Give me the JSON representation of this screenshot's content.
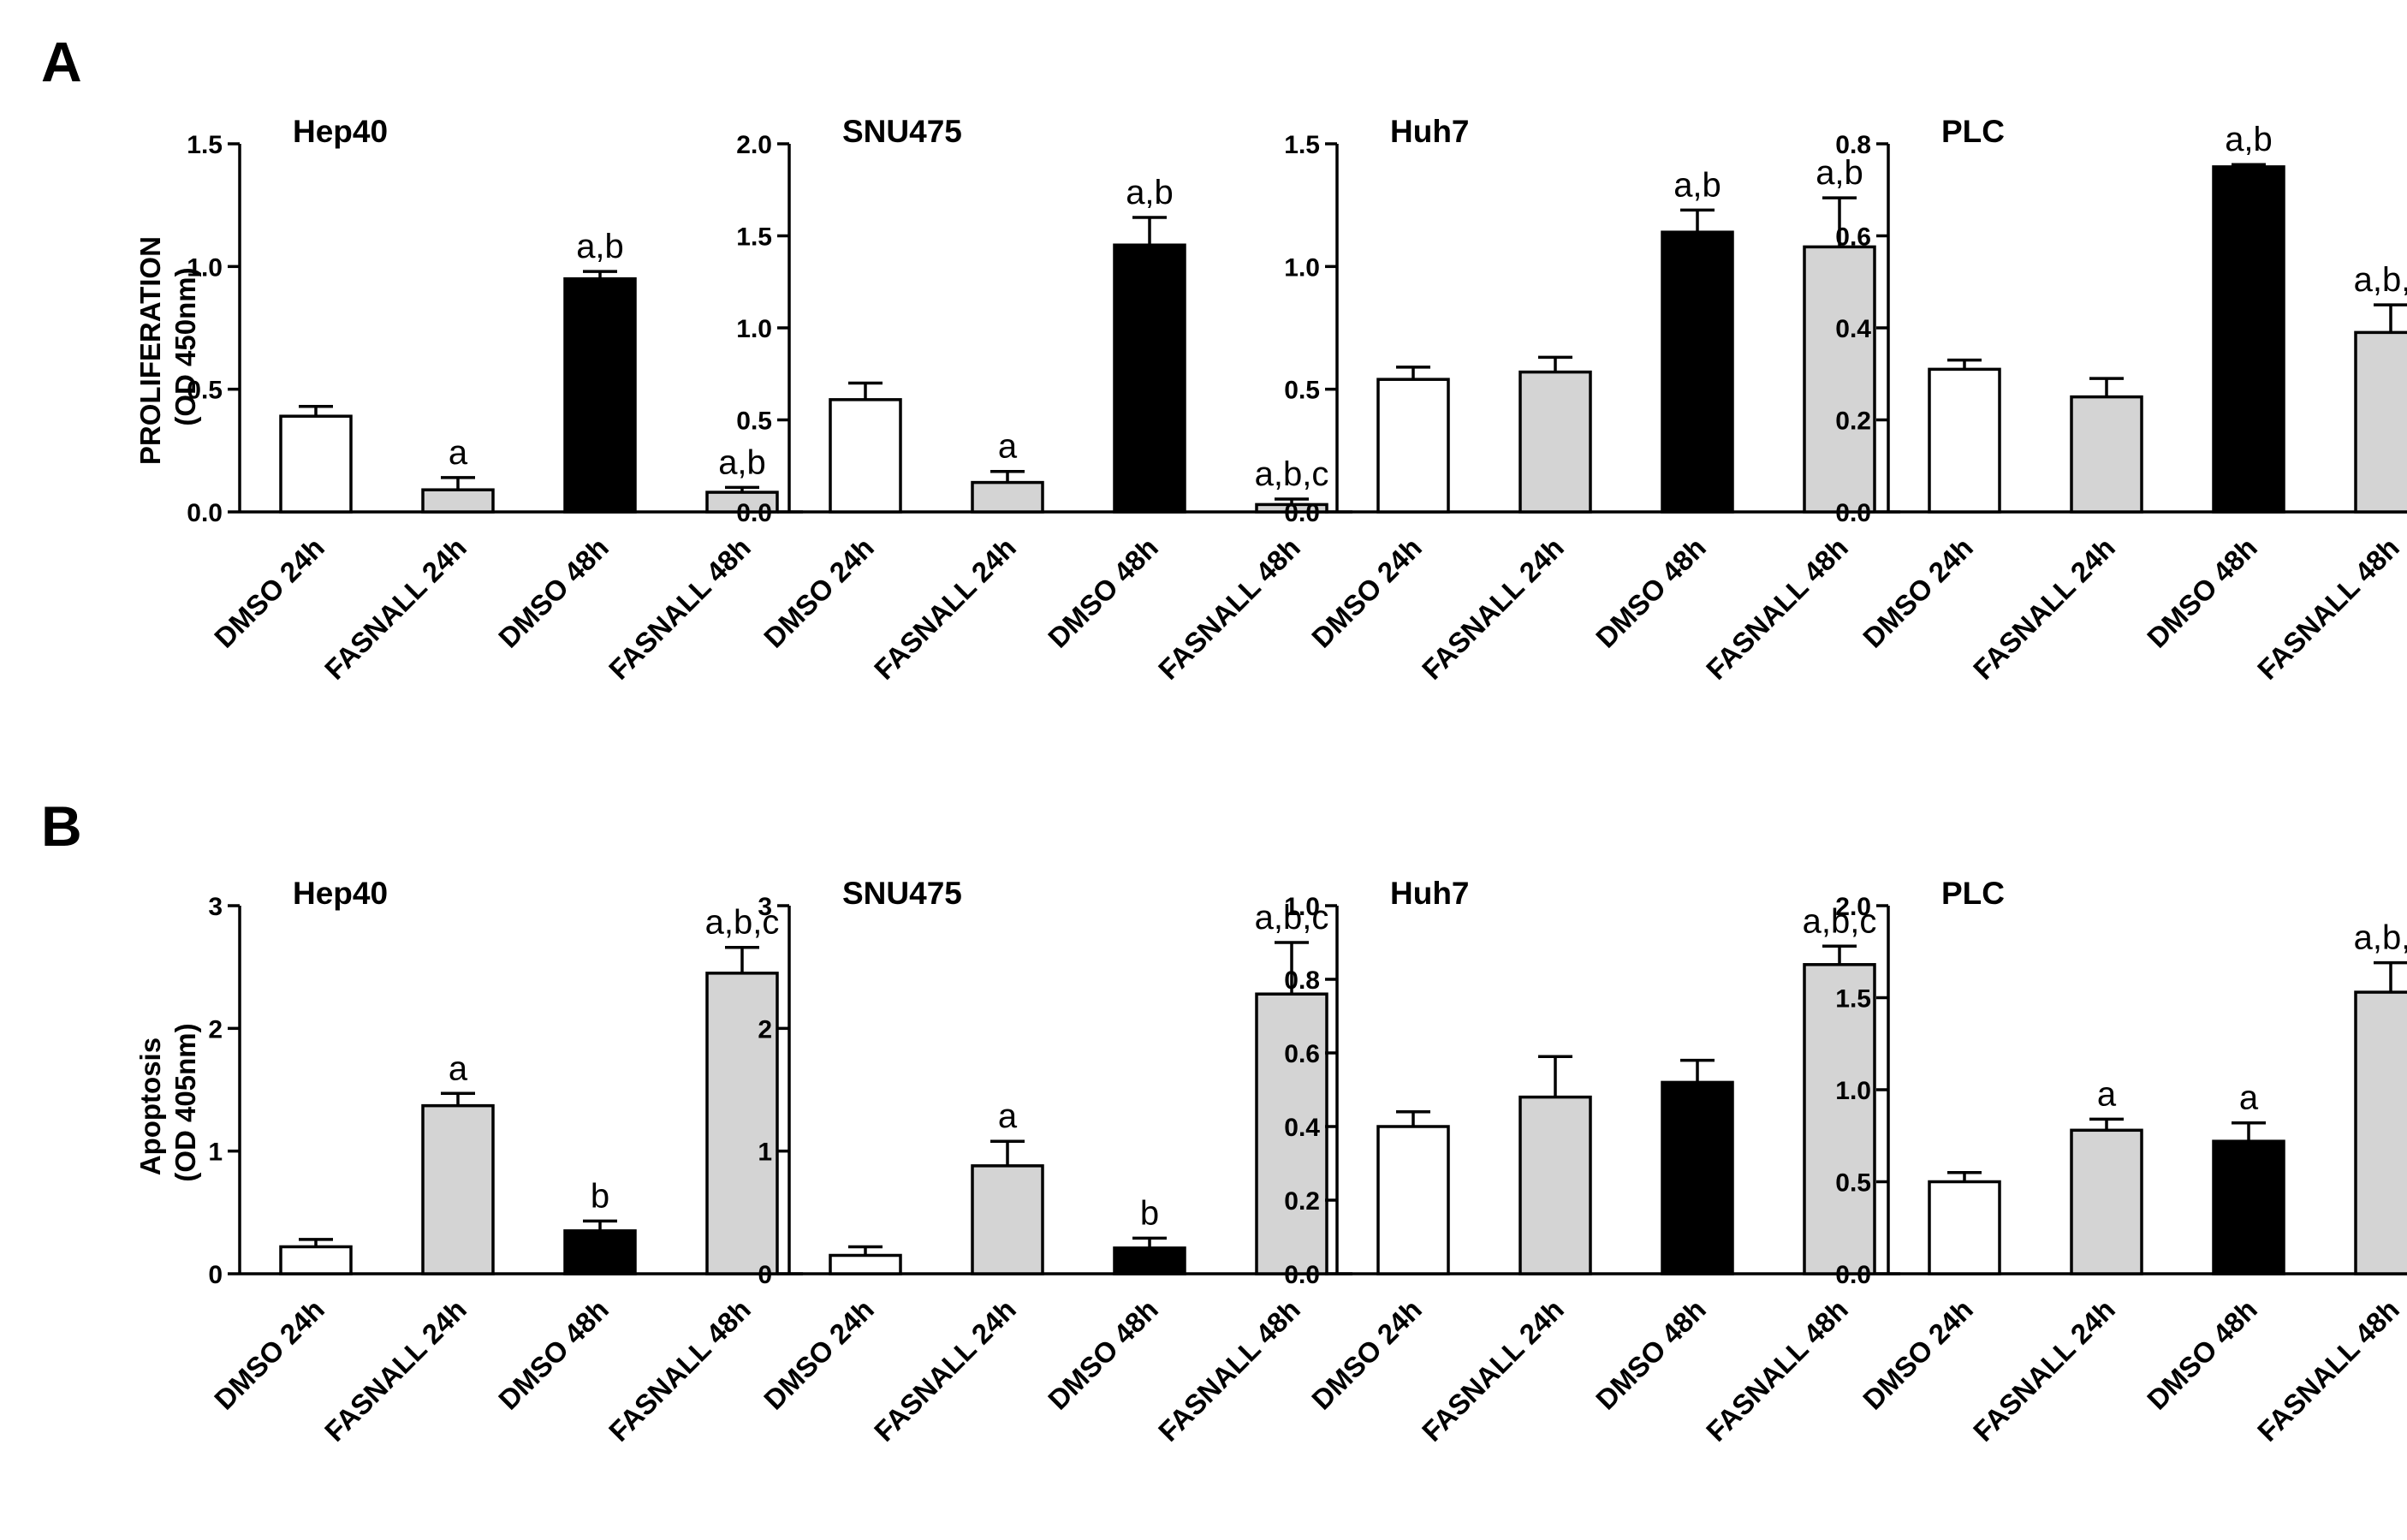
{
  "figure": {
    "panels": [
      {
        "label": "A",
        "ylabel_lines": [
          "PROLIFERATION",
          "(OD 450nm)"
        ]
      },
      {
        "label": "B",
        "ylabel_lines": [
          "Apoptosis",
          "(OD 405nm)"
        ]
      }
    ],
    "categories": [
      "DMSO 24h",
      "FASNALL 24h",
      "DMSO 48h",
      "FASNALL 48h"
    ],
    "fill_colors": [
      "#ffffff",
      "#d4d4d4",
      "#000000",
      "#d4d4d4"
    ]
  },
  "chart_data": [
    {
      "type": "bar",
      "panel": "A",
      "title": "Hep40",
      "ylabel": "PROLIFERATION (OD 450nm)",
      "categories": [
        "DMSO 24h",
        "FASNALL 24h",
        "DMSO 48h",
        "FASNALL 48h"
      ],
      "values": [
        0.39,
        0.09,
        0.95,
        0.08
      ],
      "errors": [
        0.04,
        0.05,
        0.03,
        0.02
      ],
      "annotations": [
        "",
        "a",
        "a,b",
        "a,b"
      ],
      "ylim": [
        0,
        1.5
      ],
      "yticks": [
        0.0,
        0.5,
        1.0,
        1.5
      ],
      "ytick_labels": [
        "0.0",
        "0.5",
        "1.0",
        "1.5"
      ]
    },
    {
      "type": "bar",
      "panel": "A",
      "title": "SNU475",
      "ylabel": "",
      "categories": [
        "DMSO 24h",
        "FASNALL 24h",
        "DMSO 48h",
        "FASNALL 48h"
      ],
      "values": [
        0.61,
        0.16,
        1.45,
        0.04
      ],
      "errors": [
        0.09,
        0.06,
        0.15,
        0.03
      ],
      "annotations": [
        "",
        "a",
        "a,b",
        "a,b,c"
      ],
      "ylim": [
        0,
        2.0
      ],
      "yticks": [
        0.0,
        0.5,
        1.0,
        1.5,
        2.0
      ],
      "ytick_labels": [
        "0.0",
        "0.5",
        "1.0",
        "1.5",
        "2.0"
      ]
    },
    {
      "type": "bar",
      "panel": "A",
      "title": "Huh7",
      "ylabel": "",
      "categories": [
        "DMSO 24h",
        "FASNALL 24h",
        "DMSO 48h",
        "FASNALL 48h"
      ],
      "values": [
        0.54,
        0.57,
        1.14,
        1.08
      ],
      "errors": [
        0.05,
        0.06,
        0.09,
        0.2
      ],
      "annotations": [
        "",
        "",
        "a,b",
        "a,b"
      ],
      "ylim": [
        0,
        1.5
      ],
      "yticks": [
        0.0,
        0.5,
        1.0,
        1.5
      ],
      "ytick_labels": [
        "0.0",
        "0.5",
        "1.0",
        "1.5"
      ]
    },
    {
      "type": "bar",
      "panel": "A",
      "title": "PLC",
      "ylabel": "",
      "categories": [
        "DMSO 24h",
        "FASNALL 24h",
        "DMSO 48h",
        "FASNALL 48h"
      ],
      "values": [
        0.31,
        0.25,
        0.75,
        0.39
      ],
      "errors": [
        0.02,
        0.04,
        0.005,
        0.06
      ],
      "annotations": [
        "",
        "",
        "a,b",
        "a,b,c"
      ],
      "ylim": [
        0,
        0.8
      ],
      "yticks": [
        0.0,
        0.2,
        0.4,
        0.6,
        0.8
      ],
      "ytick_labels": [
        "0.0",
        "0.2",
        "0.4",
        "0.6",
        "0.8"
      ]
    },
    {
      "type": "bar",
      "panel": "B",
      "title": "Hep40",
      "ylabel": "Apoptosis (OD 405nm)",
      "categories": [
        "DMSO 24h",
        "FASNALL 24h",
        "DMSO 48h",
        "FASNALL 48h"
      ],
      "values": [
        0.22,
        1.37,
        0.35,
        2.45
      ],
      "errors": [
        0.06,
        0.1,
        0.08,
        0.21
      ],
      "annotations": [
        "",
        "a",
        "b",
        "a,b,c"
      ],
      "ylim": [
        0,
        3
      ],
      "yticks": [
        0,
        1,
        2,
        3
      ],
      "ytick_labels": [
        "0",
        "1",
        "2",
        "3"
      ]
    },
    {
      "type": "bar",
      "panel": "B",
      "title": "SNU475",
      "ylabel": "",
      "categories": [
        "DMSO 24h",
        "FASNALL 24h",
        "DMSO 48h",
        "FASNALL 48h"
      ],
      "values": [
        0.15,
        0.88,
        0.21,
        2.28
      ],
      "errors": [
        0.07,
        0.2,
        0.08,
        0.42
      ],
      "annotations": [
        "",
        "a",
        "b",
        "a,b,c"
      ],
      "ylim": [
        0,
        3
      ],
      "yticks": [
        0,
        1,
        2,
        3
      ],
      "ytick_labels": [
        "0",
        "1",
        "2",
        "3"
      ]
    },
    {
      "type": "bar",
      "panel": "B",
      "title": "Huh7",
      "ylabel": "",
      "categories": [
        "DMSO 24h",
        "FASNALL 24h",
        "DMSO 48h",
        "FASNALL 48h"
      ],
      "values": [
        0.4,
        0.48,
        0.52,
        0.84
      ],
      "errors": [
        0.04,
        0.11,
        0.06,
        0.05
      ],
      "annotations": [
        "",
        "",
        "",
        "a,b,c"
      ],
      "ylim": [
        0,
        1.0
      ],
      "yticks": [
        0.0,
        0.2,
        0.4,
        0.6,
        0.8,
        1.0
      ],
      "ytick_labels": [
        "0.0",
        "0.2",
        "0.4",
        "0.6",
        "0.8",
        "1.0"
      ]
    },
    {
      "type": "bar",
      "panel": "B",
      "title": "PLC",
      "ylabel": "",
      "categories": [
        "DMSO 24h",
        "FASNALL 24h",
        "DMSO 48h",
        "FASNALL 48h"
      ],
      "values": [
        0.5,
        0.78,
        0.72,
        1.53
      ],
      "errors": [
        0.05,
        0.06,
        0.1,
        0.16
      ],
      "annotations": [
        "",
        "a",
        "a",
        "a,b,c"
      ],
      "ylim": [
        0,
        2.0
      ],
      "yticks": [
        0.0,
        0.5,
        1.0,
        1.5,
        2.0
      ],
      "ytick_labels": [
        "0.0",
        "0.5",
        "1.0",
        "1.5",
        "2.0"
      ]
    }
  ]
}
